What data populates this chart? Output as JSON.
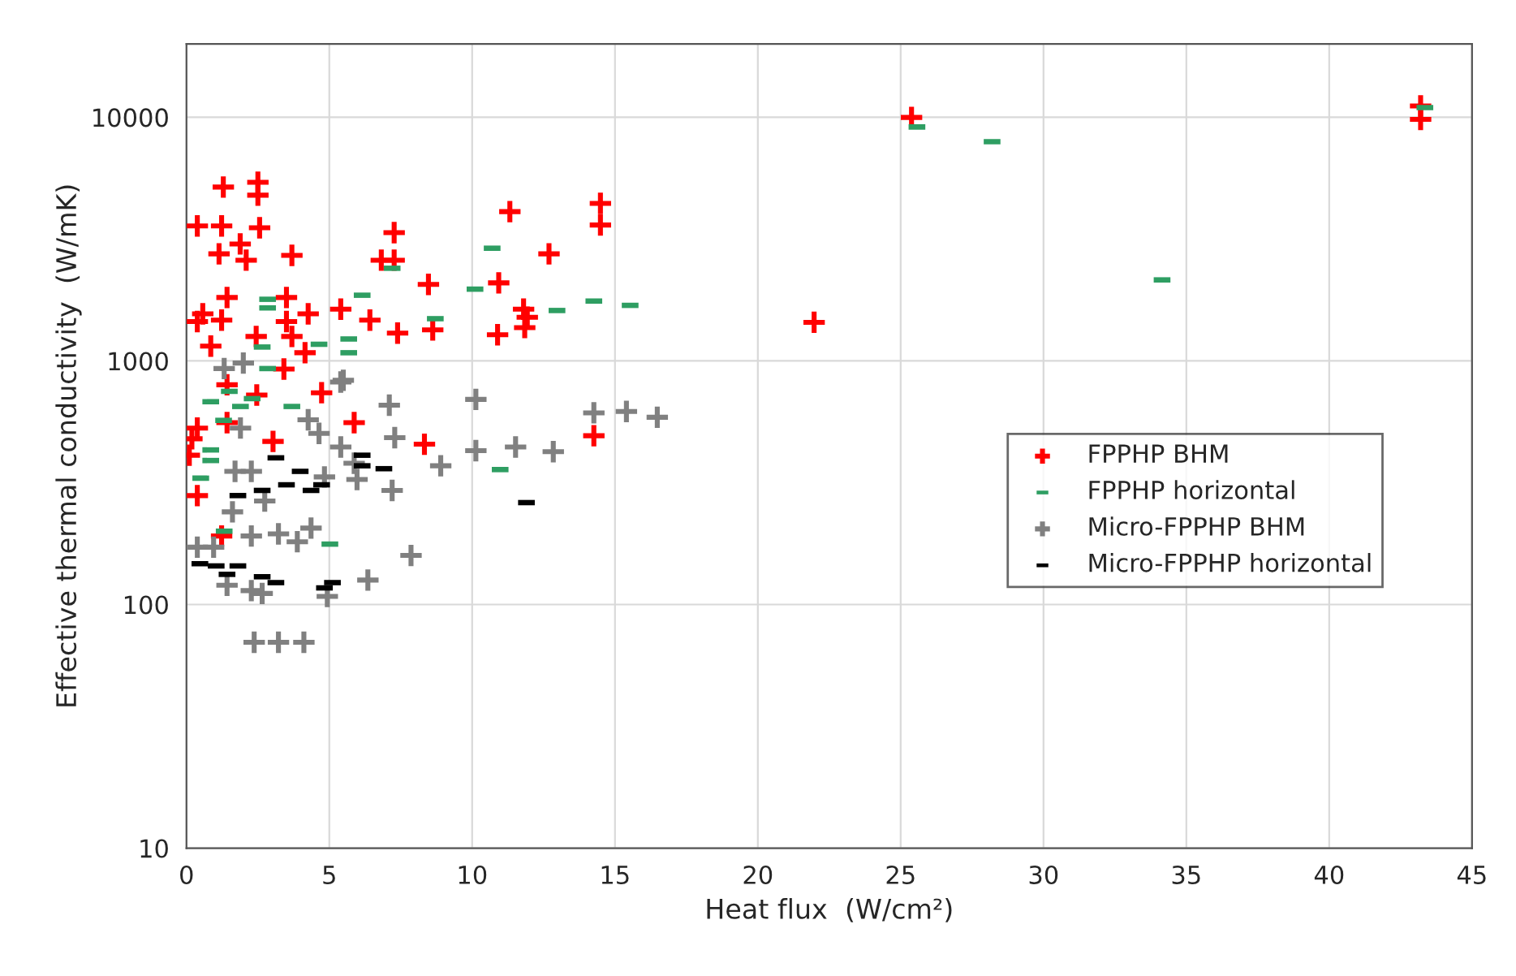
{
  "chart_data": {
    "type": "scatter",
    "xlabel": "Heat flux  (W/cm²)",
    "ylabel": "Effective thermal conductivity  (W/mK)",
    "xlim": [
      0,
      45
    ],
    "xticks": [
      0,
      5,
      10,
      15,
      20,
      25,
      30,
      35,
      40,
      45
    ],
    "ylim": [
      10,
      20000
    ],
    "yticks": [
      10,
      100,
      1000,
      10000
    ],
    "log": "y",
    "grid": true,
    "legend": "right",
    "series": [
      {
        "name": "FPPHP BHM",
        "color": "#ff0000",
        "marker": "cross",
        "x": [
          1.29,
          2.5,
          2.5,
          0.38,
          1.23,
          2.56,
          1.14,
          1.88,
          2.09,
          3.69,
          7.27,
          6.82,
          7.27,
          8.47,
          0.38,
          0.57,
          1.42,
          1.23,
          0.85,
          3.5,
          3.5,
          4.26,
          5.4,
          6.42,
          7.39,
          8.62,
          3.69,
          4.15,
          3.41,
          2.44,
          11.32,
          14.49,
          14.49,
          12.69,
          10.93,
          11.8,
          11.93,
          10.89,
          11.84,
          21.97,
          14.26,
          25.38,
          43.2,
          43.2,
          4.73,
          5.87,
          3.03,
          8.33,
          0.19,
          0.38,
          0.1,
          1.42,
          0.38,
          1.23,
          2.46,
          1.42
        ],
        "values": [
          5170,
          5410,
          4790,
          3580,
          3580,
          3520,
          2750,
          3020,
          2590,
          2710,
          3360,
          2590,
          2590,
          2060,
          1450,
          1560,
          1820,
          1470,
          1150,
          1820,
          1450,
          1560,
          1630,
          1470,
          1300,
          1340,
          1260,
          1080,
          926,
          1260,
          4100,
          4430,
          3610,
          2750,
          2090,
          1630,
          1510,
          1280,
          1370,
          1440,
          493,
          9980,
          11130,
          9800,
          740,
          558,
          467,
          455,
          479,
          530,
          410,
          558,
          280,
          191,
          724,
          798
        ]
      },
      {
        "name": "FPPHP horizontal",
        "color": "#2e9e62",
        "marker": "square",
        "x": [
          25.57,
          28.2,
          34.15,
          43.35,
          10.7,
          10.1,
          12.97,
          14.26,
          15.53,
          10.98,
          2.84,
          2.84,
          6.15,
          8.71,
          7.2,
          5.68,
          5.68,
          2.84,
          2.65,
          4.64,
          0.85,
          3.69,
          1.89,
          5.02,
          1.32,
          0.85,
          0.85,
          1.5,
          2.3,
          0.5,
          1.3
        ],
        "values": [
          9120,
          7940,
          2150,
          10960,
          2900,
          1970,
          1610,
          1760,
          1690,
          358,
          1790,
          1650,
          1860,
          1490,
          2400,
          1230,
          1080,
          930,
          1140,
          1170,
          390,
          650,
          650,
          177,
          200,
          431,
          680,
          750,
          700,
          330,
          570
        ]
      },
      {
        "name": "Micro-FPPHP BHM",
        "color": "#808080",
        "marker": "cross",
        "x": [
          12.84,
          14.26,
          15.4,
          16.48,
          10.13,
          10.13,
          11.52,
          5.4,
          7.1,
          7.29,
          8.9,
          7.2,
          7.86,
          6.35,
          4.93,
          2.37,
          3.22,
          4.11,
          4.26,
          4.64,
          5.4,
          5.87,
          5.97,
          4.83,
          4.36,
          3.88,
          3.22,
          2.27,
          2.27,
          2.65,
          1.42,
          2.27,
          2.74,
          1.61,
          0.95,
          1.89,
          1.7,
          0.38,
          1.32,
          1.99,
          5.49
        ],
        "values": [
          424,
          612,
          620,
          587,
          695,
          428,
          443,
          819,
          658,
          484,
          371,
          294,
          159,
          126,
          108,
          70,
          70,
          70,
          573,
          504,
          443,
          380,
          326,
          334,
          206,
          181,
          195,
          191,
          114,
          111,
          120,
          352,
          266,
          240,
          172,
          530,
          352,
          172,
          930,
          980,
          832
        ]
      },
      {
        "name": "Micro-FPPHP horizontal",
        "color": "#000000",
        "marker": "square",
        "x": [
          3.13,
          3.98,
          3.5,
          4.36,
          4.73,
          6.15,
          6.15,
          6.91,
          2.65,
          1.8,
          0.47,
          1.04,
          1.8,
          1.42,
          2.65,
          3.13,
          4.83,
          5.11,
          11.9
        ],
        "values": [
          400,
          352,
          310,
          294,
          310,
          410,
          371,
          361,
          294,
          280,
          147,
          144,
          144,
          133,
          130,
          123,
          117,
          123,
          262
        ]
      }
    ]
  }
}
